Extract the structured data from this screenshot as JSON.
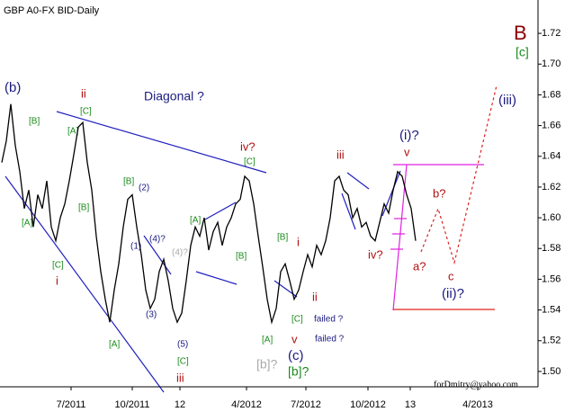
{
  "chart_data": {
    "type": "line",
    "title": "GBP A0-FX BID-Daily",
    "color": "#000000",
    "x": [
      0,
      1,
      2,
      3,
      4,
      5,
      6,
      7,
      8,
      9,
      10,
      11,
      12,
      13,
      14,
      15,
      16,
      17,
      18,
      19,
      20,
      21,
      22,
      23,
      24,
      25,
      26,
      27,
      28,
      29,
      30,
      31,
      32,
      33,
      34,
      35,
      36,
      37,
      38,
      39,
      40,
      41,
      42,
      43,
      44,
      45,
      46,
      47,
      48,
      49,
      50,
      51,
      52,
      53,
      54,
      55,
      56,
      57,
      58,
      59,
      60,
      61,
      62,
      63,
      64,
      65,
      66,
      67,
      68,
      69,
      70,
      71,
      72,
      73,
      74,
      75,
      76,
      77,
      78,
      79,
      80,
      81,
      82,
      83,
      84,
      85,
      86,
      87,
      88,
      89,
      90,
      91,
      92
    ],
    "values": [
      1.636,
      1.65,
      1.674,
      1.647,
      1.63,
      1.606,
      1.618,
      1.594,
      1.615,
      1.606,
      1.624,
      1.594,
      1.585,
      1.6,
      1.609,
      1.624,
      1.641,
      1.659,
      1.662,
      1.636,
      1.618,
      1.588,
      1.565,
      1.547,
      1.532,
      1.553,
      1.57,
      1.594,
      1.612,
      1.615,
      1.594,
      1.576,
      1.553,
      1.541,
      1.547,
      1.565,
      1.573,
      1.559,
      1.541,
      1.532,
      1.538,
      1.559,
      1.582,
      1.594,
      1.588,
      1.6,
      1.579,
      1.591,
      1.597,
      1.582,
      1.594,
      1.6,
      1.609,
      1.612,
      1.627,
      1.624,
      1.609,
      1.588,
      1.568,
      1.547,
      1.532,
      1.541,
      1.565,
      1.57,
      1.559,
      1.547,
      1.553,
      1.565,
      1.576,
      1.568,
      1.582,
      1.576,
      1.585,
      1.6,
      1.624,
      1.627,
      1.618,
      1.615,
      1.6,
      1.606,
      1.594,
      1.597,
      1.588,
      1.585,
      1.597,
      1.609,
      1.603,
      1.618,
      1.63,
      1.627,
      1.615,
      1.606,
      1.585
    ],
    "xlim": [
      0,
      119.2
    ],
    "ylim": [
      1.49,
      1.73
    ],
    "xticks": [
      {
        "value": 15.4,
        "label": "7/2011"
      },
      {
        "value": 29,
        "label": "10/2011"
      },
      {
        "value": 39.6,
        "label": "12"
      },
      {
        "value": 54.4,
        "label": "4/2012"
      },
      {
        "value": 67.6,
        "label": "7/2012"
      },
      {
        "value": 81.4,
        "label": "10/2012"
      },
      {
        "value": 90.8,
        "label": "13"
      },
      {
        "value": 105.8,
        "label": "4/2013"
      }
    ],
    "yticks": [
      {
        "value": 1.5,
        "label": "1.50"
      },
      1.52,
      1.54,
      1.56,
      1.58,
      {
        "value": 1.6,
        "label": "1.60"
      },
      1.62,
      1.64,
      1.66,
      1.68,
      {
        "value": 1.7,
        "label": "1.70"
      },
      1.72
    ],
    "annotations": [
      "B",
      "[c]",
      "(b)",
      "ii",
      "[C]",
      "Diagonal ?",
      "[B]",
      "[A]",
      "[B]",
      "[A]",
      "[C]",
      "i",
      "[B]",
      "(2)",
      "(1)",
      "(4)?",
      "(4)?",
      "(3)",
      "[A]",
      "(5)",
      "[C]",
      "iii",
      "iv?",
      "[C]",
      "[A]",
      "[B]",
      "[B]",
      "i",
      "ii",
      "[C]",
      "failed ?",
      "failed ?",
      "[A]",
      "v",
      "(c)",
      "[b]?",
      "[b]?",
      "iii",
      "(i)?",
      "v",
      "b?",
      "iv?",
      "a?",
      "c",
      "(ii)?",
      "(iii)",
      "forDmitry@yahoo.com"
    ]
  }
}
